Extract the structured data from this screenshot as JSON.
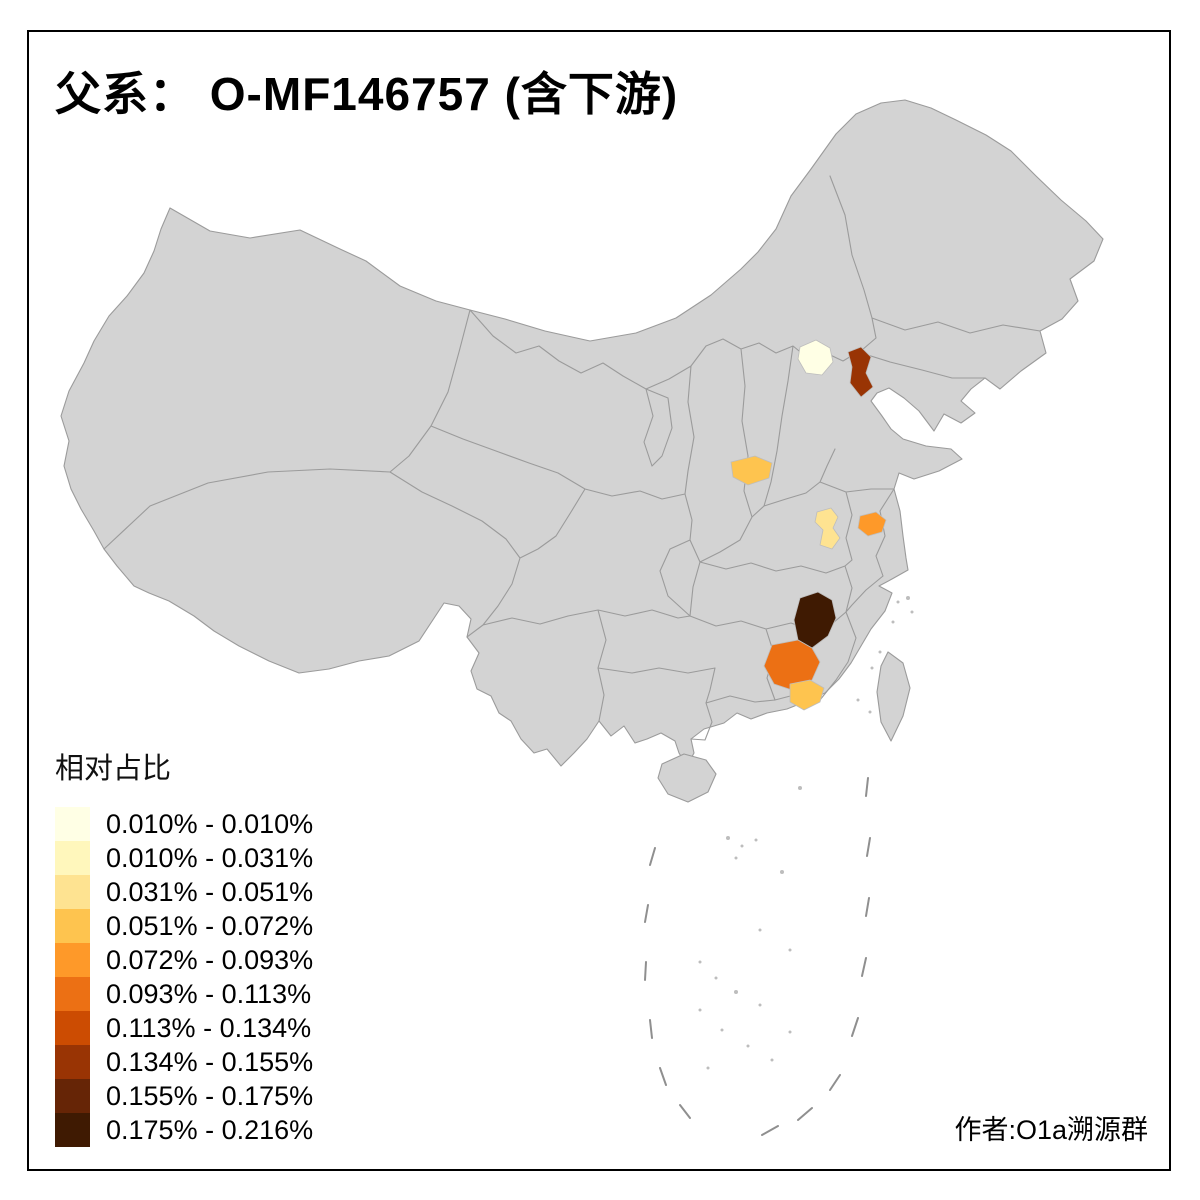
{
  "title": "父系：  O-MF146757 (含下游)",
  "attribution": "作者:O1a溯源群",
  "legend": {
    "title": "相对占比",
    "items": [
      {
        "label": "0.010% - 0.010%",
        "color": "#FFFFE5"
      },
      {
        "label": "0.010% - 0.031%",
        "color": "#FFF7BC"
      },
      {
        "label": "0.031% - 0.051%",
        "color": "#FEE391"
      },
      {
        "label": "0.051% - 0.072%",
        "color": "#FEC44F"
      },
      {
        "label": "0.072% - 0.093%",
        "color": "#FE9929"
      },
      {
        "label": "0.093% - 0.113%",
        "color": "#EC7014"
      },
      {
        "label": "0.113% - 0.134%",
        "color": "#CC4C02"
      },
      {
        "label": "0.134% - 0.155%",
        "color": "#993404"
      },
      {
        "label": "0.155% - 0.175%",
        "color": "#662506"
      },
      {
        "label": "0.175% - 0.216%",
        "color": "#3F1A02"
      }
    ]
  },
  "map": {
    "base_fill": "#d3d3d3",
    "border_color": "#9b9b9b",
    "background": "#ffffff",
    "regions": {
      "beijing": {
        "color": "#FFFFE5",
        "range": "0.010% - 0.010%"
      },
      "tianjin": {
        "color": "#993404",
        "range": "0.134% - 0.155%"
      },
      "shanxi_south": {
        "color": "#FEC44F",
        "range": "0.051% - 0.072%"
      },
      "henan_central": {
        "color": "#FEE391",
        "range": "0.031% - 0.051%"
      },
      "anhui_east": {
        "color": "#FE9929",
        "range": "0.072% - 0.093%"
      },
      "jiangxi_north": {
        "color": "#3F1A02",
        "range": "0.175% - 0.216%"
      },
      "jiangxi_central": {
        "color": "#EC7014",
        "range": "0.093% - 0.113%"
      },
      "guangdong_east": {
        "color": "#FEC44F",
        "range": "0.051% - 0.072%"
      }
    }
  }
}
